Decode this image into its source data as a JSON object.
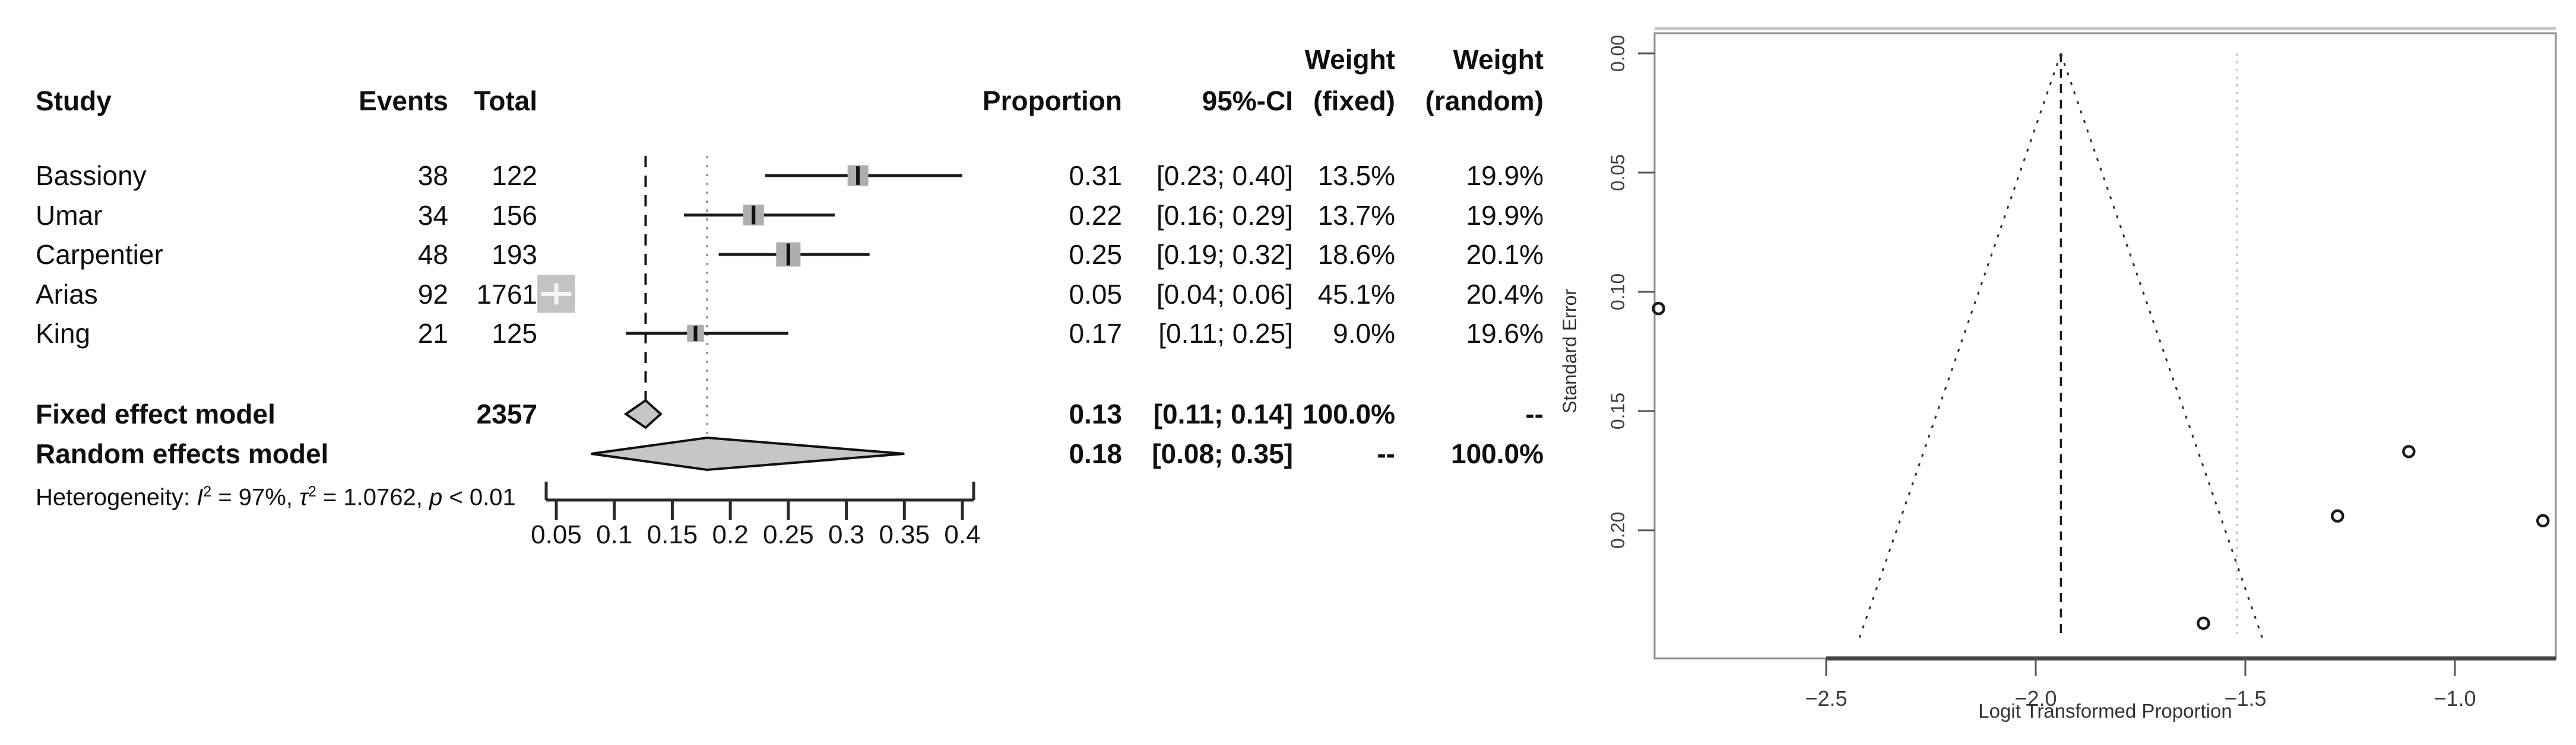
{
  "figure": {
    "background": "#ffffff",
    "text_color": "#0f0f0f",
    "marker_gray": "#aeaeae",
    "diamond_gray": "#c6c6c6"
  },
  "forest_header": {
    "study": "Study",
    "events": "Events",
    "total": "Total",
    "proportion": "Proportion",
    "ci": "95%-CI",
    "weight": "Weight",
    "fixed": "(fixed)",
    "random": "(random)"
  },
  "heterogeneity": {
    "prefix": "Heterogeneity: ",
    "i_sym": "I",
    "i_sup": "2",
    "i_rest": " = 97%, ",
    "tau_sym": "τ",
    "tau_sup": "2",
    "tau_rest": " = 1.0762, ",
    "p_sym": "p",
    "p_rest": " < 0.01"
  },
  "chart_data": [
    {
      "type": "forest",
      "title": "",
      "columns": [
        "Study",
        "Events",
        "Total",
        "Proportion",
        "95%-CI",
        "Weight (fixed)",
        "Weight (random)"
      ],
      "studies": [
        {
          "study": "Bassiony",
          "events": 38,
          "total": 122,
          "proportion": "0.31",
          "p": 0.31,
          "ci_low": 0.23,
          "ci_high": 0.4,
          "ci_text": "[0.23; 0.40]",
          "weight_fixed": "13.5%",
          "weight_random": "19.9%"
        },
        {
          "study": "Umar",
          "events": 34,
          "total": 156,
          "proportion": "0.22",
          "p": 0.22,
          "ci_low": 0.16,
          "ci_high": 0.29,
          "ci_text": "[0.16; 0.29]",
          "weight_fixed": "13.7%",
          "weight_random": "19.9%"
        },
        {
          "study": "Carpentier",
          "events": 48,
          "total": 193,
          "proportion": "0.25",
          "p": 0.25,
          "ci_low": 0.19,
          "ci_high": 0.32,
          "ci_text": "[0.19; 0.32]",
          "weight_fixed": "18.6%",
          "weight_random": "20.1%"
        },
        {
          "study": "Arias",
          "events": 92,
          "total": 1761,
          "proportion": "0.05",
          "p": 0.05,
          "ci_low": 0.04,
          "ci_high": 0.06,
          "ci_text": "[0.04; 0.06]",
          "weight_fixed": "45.1%",
          "weight_random": "20.4%"
        },
        {
          "study": "King",
          "events": 21,
          "total": 125,
          "proportion": "0.17",
          "p": 0.17,
          "ci_low": 0.11,
          "ci_high": 0.25,
          "ci_text": "[0.11; 0.25]",
          "weight_fixed": "9.0%",
          "weight_random": "19.6%"
        }
      ],
      "summaries": [
        {
          "label": "Fixed effect model",
          "total": "2357",
          "proportion": "0.13",
          "p": 0.13,
          "center": 0.127,
          "ci_low": 0.11,
          "ci_high": 0.14,
          "ci_text": "[0.11; 0.14]",
          "weight_fixed": "100.0%",
          "weight_random": "--"
        },
        {
          "label": "Random effects model",
          "total": "",
          "proportion": "0.18",
          "p": 0.18,
          "center": 0.18,
          "ci_low": 0.08,
          "ci_high": 0.35,
          "ci_text": "[0.08; 0.35]",
          "weight_fixed": "--",
          "weight_random": "100.0%"
        }
      ],
      "heterogeneity_text": "Heterogeneity: I2 = 97%, t2 = 1.0762, p < 0.01",
      "x_ticks": [
        0.05,
        0.1,
        0.15,
        0.2,
        0.25,
        0.3,
        0.35,
        0.4
      ],
      "x_tick_labels": [
        "0.05",
        "0.1",
        "0.15",
        "0.2",
        "0.25",
        "0.3",
        "0.35",
        "0.4"
      ],
      "xlim": [
        0.05,
        0.4
      ],
      "fixed_line_p": 0.127,
      "random_line_p": 0.18
    },
    {
      "type": "scatter",
      "subtype": "funnel",
      "xlabel": "Logit Transformed Proportion",
      "ylabel": "Standard Error",
      "x_ticks": [
        -2.5,
        -2.0,
        -1.5,
        -1.0
      ],
      "x_tick_labels": [
        "−2.5",
        "−2.0",
        "−1.5",
        "−1.0"
      ],
      "y_ticks": [
        0.0,
        0.05,
        0.1,
        0.15,
        0.2
      ],
      "y_tick_labels": [
        "0.00",
        "0.05",
        "0.10",
        "0.15",
        "0.20"
      ],
      "xlim": [
        -2.9,
        -0.76
      ],
      "ylim": [
        0,
        0.245
      ],
      "points": [
        {
          "x": -2.9,
          "se": 0.107
        },
        {
          "x": -1.28,
          "se": 0.194
        },
        {
          "x": -1.11,
          "se": 0.167
        },
        {
          "x": -0.79,
          "se": 0.196
        },
        {
          "x": -1.6,
          "se": 0.239
        }
      ],
      "fixed_effect_x": -1.94,
      "random_effect_x": -1.52,
      "pseudo_ci_slope": 1.96
    }
  ]
}
